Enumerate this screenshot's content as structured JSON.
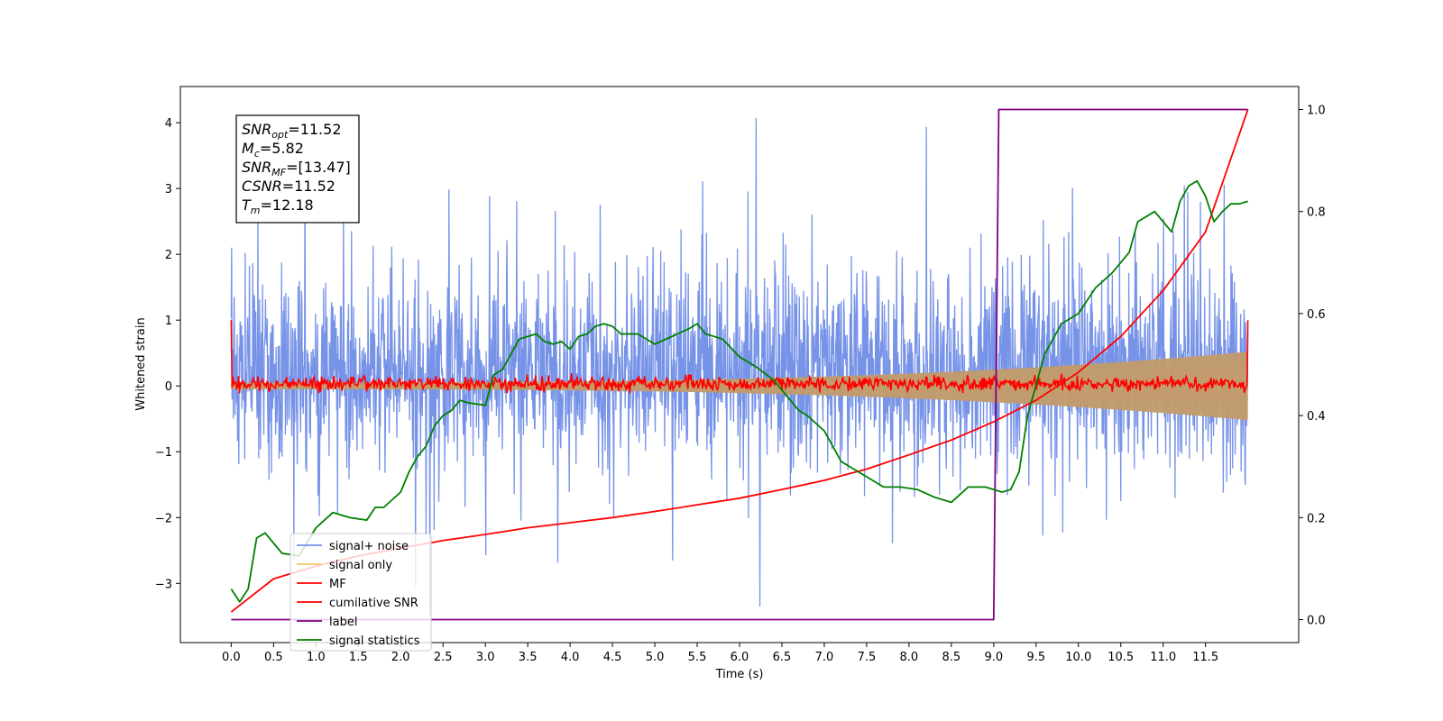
{
  "chart_data": {
    "type": "line",
    "xlabel": "Time (s)",
    "ylabel_left": "Whitened strain",
    "ylabel_right": "",
    "xlim": [
      -0.6,
      12.6
    ],
    "ylim_left": [
      -3.9,
      4.55
    ],
    "ylim_right": [
      -0.045,
      1.045
    ],
    "x_ticks": [
      0.0,
      0.5,
      1.0,
      1.5,
      2.0,
      2.5,
      3.0,
      3.5,
      4.0,
      4.5,
      5.0,
      5.5,
      6.0,
      6.5,
      7.0,
      7.5,
      8.0,
      8.5,
      9.0,
      9.5,
      10.0,
      10.5,
      11.0,
      11.5
    ],
    "x_tick_labels": [
      "0.0",
      "0.5",
      "1.0",
      "1.5",
      "2.0",
      "2.5",
      "3.0",
      "3.5",
      "4.0",
      "4.5",
      "5.0",
      "5.5",
      "6.0",
      "6.5",
      "7.0",
      "7.5",
      "8.0",
      "8.5",
      "9.0",
      "9.5",
      "10.0",
      "10.5",
      "11.0",
      "11.5"
    ],
    "y_ticks_left": [
      -3,
      -2,
      -1,
      0,
      1,
      2,
      3,
      4
    ],
    "y_tick_labels_left": [
      "−3",
      "−2",
      "−1",
      "0",
      "1",
      "2",
      "3",
      "4"
    ],
    "y_ticks_right": [
      0.0,
      0.2,
      0.4,
      0.6,
      0.8,
      1.0
    ],
    "y_tick_labels_right": [
      "0.0",
      "0.2",
      "0.4",
      "0.6",
      "0.8",
      "1.0"
    ],
    "grid": false,
    "legend_position": "lower-left",
    "annotation_box": {
      "position": "top-left",
      "lines": [
        {
          "base": "SNR",
          "sub": "opt",
          "value": "=11.52"
        },
        {
          "base": "M",
          "sub": "c",
          "value": "=5.82"
        },
        {
          "base": "SNR",
          "sub": "MF",
          "value": "=[13.47]"
        },
        {
          "base": "CSNR",
          "sub": "",
          "value": "=11.52"
        },
        {
          "base": "T",
          "sub": "m",
          "value": "=12.18"
        }
      ]
    },
    "series": [
      {
        "name": "signal+ noise",
        "axis": "left",
        "color": "#7793e8",
        "kind": "noise",
        "x_range": [
          0.0,
          12.0
        ],
        "typical_range": [
          -1.8,
          2.6
        ],
        "extreme_range": [
          -3.5,
          4.2
        ]
      },
      {
        "name": "signal only",
        "axis": "left",
        "color": "#f5c573",
        "kind": "chirp_envelope",
        "x_range": [
          0.0,
          12.0
        ],
        "amplitude_start": 0.05,
        "amplitude_end": 0.52
      },
      {
        "name": "MF",
        "axis": "left",
        "color": "#ff0000",
        "kind": "noise",
        "x_range": [
          0.0,
          12.0
        ],
        "start_value": 1.0,
        "end_value": 1.0,
        "typical_range": [
          -0.1,
          0.18
        ]
      },
      {
        "name": "cumilative SNR",
        "axis": "right",
        "color": "#ff0000",
        "x": [
          0.0,
          0.5,
          1.0,
          1.5,
          2.0,
          2.5,
          3.0,
          3.5,
          4.0,
          4.5,
          5.0,
          5.5,
          6.0,
          6.5,
          7.0,
          7.5,
          8.0,
          8.5,
          9.0,
          9.5,
          10.0,
          10.5,
          11.0,
          11.5,
          12.0
        ],
        "values": [
          0.015,
          0.08,
          0.105,
          0.125,
          0.14,
          0.155,
          0.167,
          0.18,
          0.19,
          0.2,
          0.212,
          0.225,
          0.238,
          0.255,
          0.273,
          0.295,
          0.323,
          0.352,
          0.388,
          0.43,
          0.485,
          0.555,
          0.645,
          0.76,
          1.0
        ]
      },
      {
        "name": "label",
        "axis": "right",
        "color": "#800080",
        "x": [
          0.0,
          9.0,
          9.06,
          12.0
        ],
        "values": [
          0.0,
          0.0,
          1.0,
          1.0
        ]
      },
      {
        "name": "signal statistics",
        "axis": "right",
        "color": "#008000",
        "x": [
          0.0,
          0.1,
          0.2,
          0.3,
          0.4,
          0.5,
          0.6,
          0.8,
          1.0,
          1.1,
          1.2,
          1.4,
          1.6,
          1.7,
          1.8,
          2.0,
          2.1,
          2.2,
          2.3,
          2.4,
          2.5,
          2.6,
          2.7,
          2.8,
          3.0,
          3.1,
          3.2,
          3.3,
          3.4,
          3.5,
          3.6,
          3.7,
          3.8,
          3.9,
          4.0,
          4.1,
          4.2,
          4.3,
          4.4,
          4.5,
          4.6,
          4.8,
          5.0,
          5.2,
          5.4,
          5.5,
          5.6,
          5.8,
          6.0,
          6.2,
          6.4,
          6.6,
          6.7,
          6.8,
          7.0,
          7.2,
          7.3,
          7.5,
          7.7,
          7.9,
          8.1,
          8.3,
          8.5,
          8.7,
          8.9,
          9.1,
          9.2,
          9.3,
          9.4,
          9.6,
          9.8,
          10.0,
          10.2,
          10.4,
          10.5,
          10.6,
          10.7,
          10.9,
          11.0,
          11.1,
          11.2,
          11.3,
          11.4,
          11.5,
          11.6,
          11.7,
          11.8,
          11.9,
          12.0
        ],
        "values": [
          0.06,
          0.035,
          0.06,
          0.16,
          0.17,
          0.15,
          0.13,
          0.125,
          0.18,
          0.195,
          0.21,
          0.2,
          0.195,
          0.22,
          0.22,
          0.25,
          0.29,
          0.32,
          0.34,
          0.38,
          0.4,
          0.41,
          0.43,
          0.425,
          0.42,
          0.48,
          0.49,
          0.52,
          0.55,
          0.555,
          0.56,
          0.545,
          0.54,
          0.545,
          0.53,
          0.555,
          0.56,
          0.575,
          0.58,
          0.575,
          0.56,
          0.56,
          0.54,
          0.555,
          0.57,
          0.58,
          0.56,
          0.55,
          0.515,
          0.495,
          0.47,
          0.43,
          0.41,
          0.4,
          0.37,
          0.31,
          0.3,
          0.28,
          0.26,
          0.26,
          0.255,
          0.24,
          0.23,
          0.26,
          0.26,
          0.25,
          0.255,
          0.29,
          0.4,
          0.52,
          0.58,
          0.6,
          0.65,
          0.68,
          0.7,
          0.72,
          0.78,
          0.8,
          0.78,
          0.76,
          0.82,
          0.85,
          0.86,
          0.83,
          0.78,
          0.8,
          0.815,
          0.815,
          0.82
        ]
      }
    ]
  }
}
